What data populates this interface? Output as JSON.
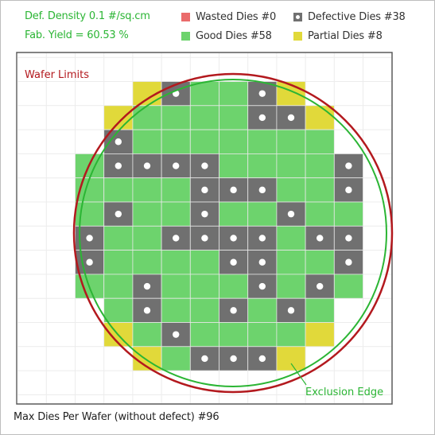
{
  "stats": {
    "defect_density": "Def. Density 0.1 #/sq.cm",
    "fab_yield": "Fab. Yield = 60.53 %"
  },
  "legend": {
    "wasted": "Wasted Dies  #0",
    "good": "Good Dies #58",
    "defective": "Defective Dies  #38",
    "partial": "Partial Dies #8"
  },
  "labels": {
    "wafer_limits": "Wafer Limits",
    "exclusion_edge": "Exclusion Edge"
  },
  "footer": "Max Dies Per Wafer (without defect) #96",
  "colors": {
    "good": "#6dd36d",
    "defective": "#707070",
    "partial": "#e1d93a",
    "wasted": "#ea6b6b",
    "wafer_limit": "#b3191e",
    "exclusion_edge": "#2bb534",
    "grid_line": "#ececec",
    "frame": "#5a5a5a"
  },
  "die_map": {
    "legend_key": "G = good, D = defective, P = partial, . = none",
    "rows": [
      "..PDGGDP..",
      ".PGGGGDDP.",
      ".DGGGGGGG.",
      "GDDDDGGGGD",
      "GGGGDDDGGD",
      "GDGGDGGDGG",
      "DGGDDDDGDD",
      "DGGGGDDGGD",
      "GGDGGGDGDG",
      ".GDGGDGDG.",
      ".PGDGGGGP.",
      "..PGDDDP.."
    ]
  }
}
